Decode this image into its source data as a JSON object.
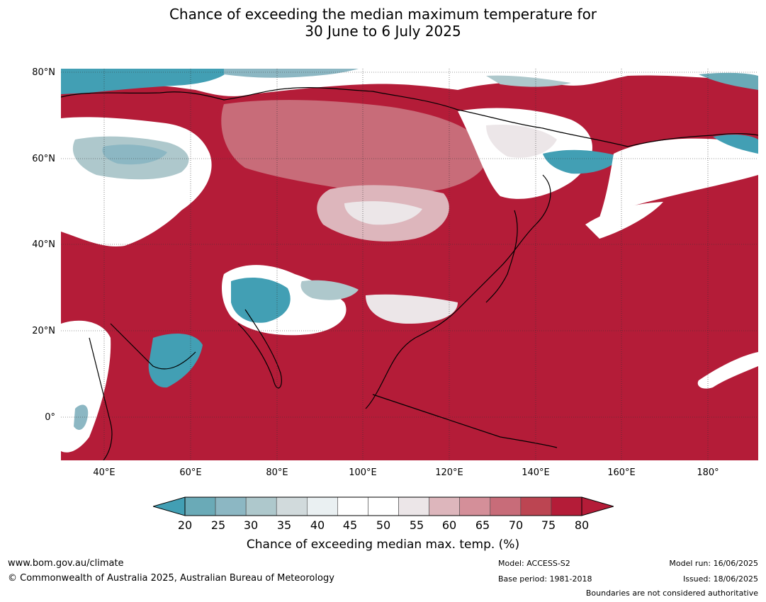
{
  "title": {
    "line1": "Chance of exceeding the median maximum temperature for",
    "line2": "30 June to 6 July 2025"
  },
  "map": {
    "lat_labels": [
      "80°N",
      "60°N",
      "40°N",
      "20°N",
      "0°"
    ],
    "lon_labels": [
      "40°E",
      "60°E",
      "80°E",
      "100°E",
      "120°E",
      "140°E",
      "160°E",
      "180°"
    ],
    "lat_range": [
      -10,
      81
    ],
    "lon_range": [
      30,
      192
    ],
    "ocean_color": "#b41c38"
  },
  "colorbar": {
    "ticks": [
      "20",
      "25",
      "30",
      "35",
      "40",
      "45",
      "50",
      "55",
      "60",
      "65",
      "70",
      "75",
      "80"
    ],
    "colors": [
      "#429fb4",
      "#6aaab7",
      "#8cb7c3",
      "#aec8cc",
      "#d1dadc",
      "#eaf0f2",
      "#ffffff",
      "#ffffff",
      "#ece6e8",
      "#ddb6bc",
      "#d48f99",
      "#c86c79",
      "#bc4552",
      "#b41c38"
    ],
    "label": "Chance of exceeding median max. temp. (%)"
  },
  "footer": {
    "website": "www.bom.gov.au/climate",
    "copyright": "© Commonwealth of Australia 2025, Australian Bureau of Meteorology",
    "model": "Model: ACCESS-S2",
    "base_period": "Base period: 1981-2018",
    "model_run": "Model run: 16/06/2025",
    "issued": "Issued: 18/06/2025",
    "disclaimer": "Boundaries are not considered authoritative"
  }
}
